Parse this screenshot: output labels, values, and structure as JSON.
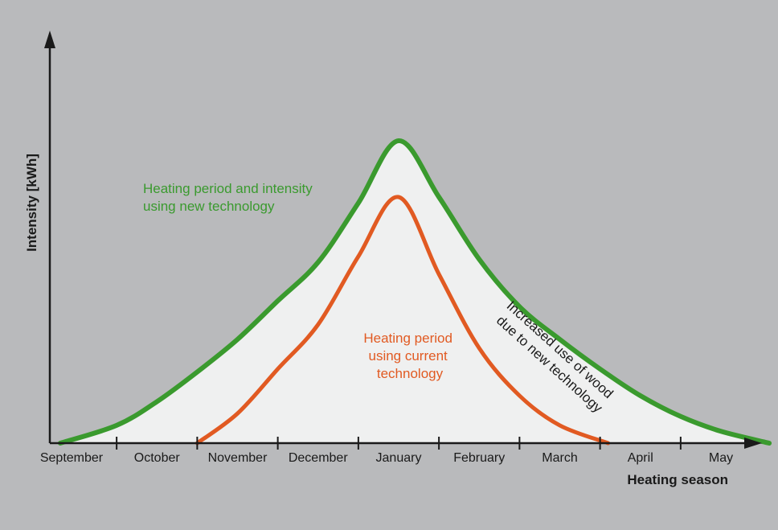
{
  "chart_data": {
    "type": "area",
    "xlabel": "Heating season",
    "ylabel": "Intensity [kWh]",
    "categories": [
      "September",
      "October",
      "November",
      "December",
      "January",
      "February",
      "March",
      "April",
      "May"
    ],
    "series": [
      {
        "name": "Heating period and intensity using new technology",
        "color": "#3a9a2e",
        "x": [
          -0.2,
          0.5,
          1.0,
          1.5,
          2.0,
          2.5,
          3.0,
          3.5,
          4.0,
          4.5,
          5.0,
          5.5,
          6.0,
          6.5,
          7.0,
          7.5,
          8.0,
          8.6
        ],
        "values": [
          0,
          6,
          14,
          24,
          35,
          48,
          61,
          81,
          102,
          83,
          62,
          46,
          35,
          25,
          16,
          9,
          4,
          0
        ]
      },
      {
        "name": "Heating period using current technology",
        "color": "#e15a22",
        "x": [
          1.5,
          2.0,
          2.5,
          3.0,
          3.5,
          4.0,
          4.5,
          5.0,
          5.5,
          6.0,
          6.6
        ],
        "values": [
          0,
          10,
          25,
          40,
          63,
          83,
          57,
          32,
          16,
          6,
          0
        ]
      }
    ],
    "annotations": {
      "new_line1": "Heating period and intensity",
      "new_line2": "using new technology",
      "current_line1": "Heating period",
      "current_line2": "using current",
      "current_line3": "technology",
      "gap_line1": "Increased use of wood",
      "gap_line2": "due to new technology"
    },
    "fill_color": "#eff0f0",
    "grid": false,
    "legend": "none"
  }
}
